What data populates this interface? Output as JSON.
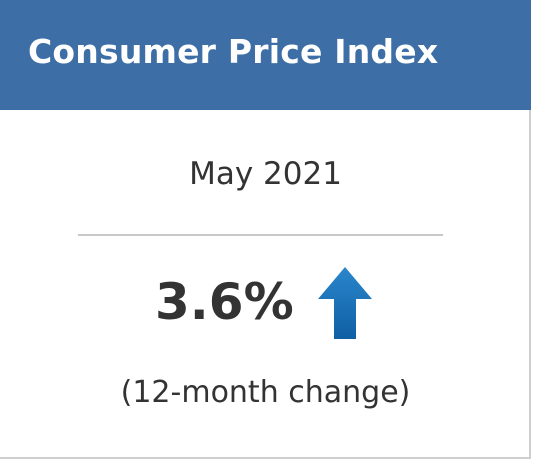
{
  "card": {
    "title": "Consumer Price Index",
    "period": "May 2021",
    "value": "3.6%",
    "direction_icon": "arrow-up-icon",
    "caption": "(12-month change)"
  },
  "colors": {
    "header_background": "#3d6ea6",
    "header_text": "#ffffff",
    "body_text": "#333333",
    "arrow": "#1570b8",
    "divider": "#c8c8c8"
  }
}
